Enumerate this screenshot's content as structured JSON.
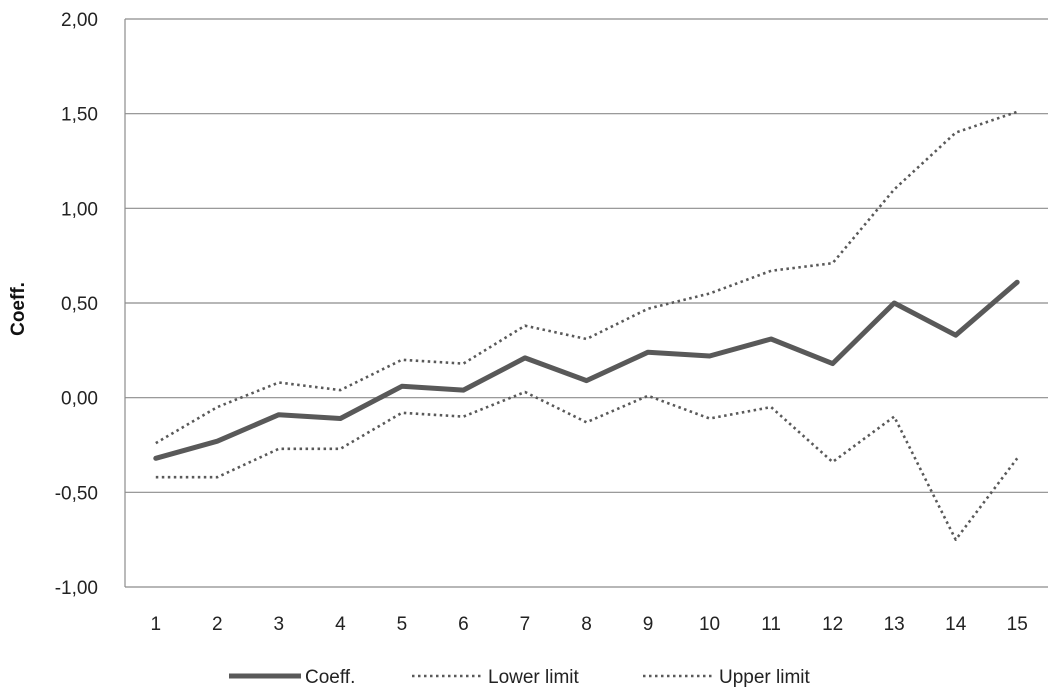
{
  "chart_data": {
    "type": "line",
    "title": "",
    "xlabel": "",
    "ylabel": "Coeff.",
    "categories": [
      "1",
      "2",
      "3",
      "4",
      "5",
      "6",
      "7",
      "8",
      "9",
      "10",
      "11",
      "12",
      "13",
      "14",
      "15"
    ],
    "y_ticks": [
      "2,00",
      "1,50",
      "1,00",
      "0,50",
      "0,00",
      "-0,50",
      "-1,00"
    ],
    "y_tick_values": [
      2.0,
      1.5,
      1.0,
      0.5,
      0.0,
      -0.5,
      -1.0
    ],
    "ylim": [
      -1.0,
      2.0
    ],
    "grid": true,
    "legend_position": "bottom",
    "series": [
      {
        "name": "Coeff.",
        "style": "solid",
        "color": "#595959",
        "values": [
          -0.32,
          -0.23,
          -0.09,
          -0.11,
          0.06,
          0.04,
          0.21,
          0.09,
          0.24,
          0.22,
          0.31,
          0.18,
          0.5,
          0.33,
          0.61
        ]
      },
      {
        "name": "Lower limit",
        "style": "dotted",
        "color": "#595959",
        "values": [
          -0.42,
          -0.42,
          -0.27,
          -0.27,
          -0.08,
          -0.1,
          0.03,
          -0.13,
          0.01,
          -0.11,
          -0.05,
          -0.34,
          -0.1,
          -0.75,
          -0.32
        ]
      },
      {
        "name": "Upper limit",
        "style": "dotted",
        "color": "#595959",
        "values": [
          -0.24,
          -0.05,
          0.08,
          0.04,
          0.2,
          0.18,
          0.38,
          0.31,
          0.47,
          0.55,
          0.67,
          0.71,
          1.1,
          1.4,
          1.51
        ]
      }
    ]
  }
}
